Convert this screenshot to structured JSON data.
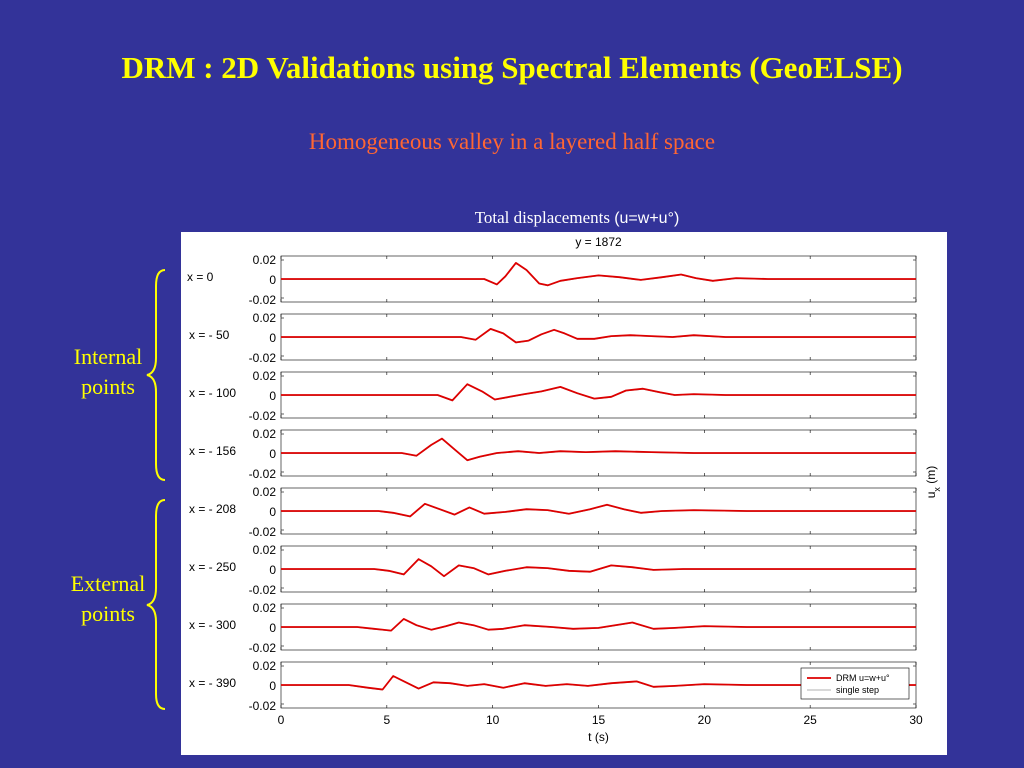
{
  "slide": {
    "title": "DRM : 2D Validations using Spectral Elements (GeoELSE)",
    "subtitle": "Homogeneous valley in a layered half space",
    "chart_heading_serif": "Total displacements ",
    "chart_heading_sans": "(u=w+u°)"
  },
  "groups": {
    "internal": "Internal points",
    "external": "External points"
  },
  "colors": {
    "background": "#333399",
    "title": "#ffff00",
    "subtitle": "#ff6633",
    "series_drm": "#dd0000",
    "series_single": "#999999"
  },
  "chart_data": {
    "type": "line",
    "title": "y = 1872",
    "xlabel": "t (s)",
    "ylabel": "u_x (m)",
    "xlim": [
      0,
      30
    ],
    "ylim": [
      -0.02,
      0.02
    ],
    "xticks": [
      0,
      5,
      10,
      15,
      20,
      25,
      30
    ],
    "yticks": [
      "0.02",
      "0",
      "-0.02"
    ],
    "legend": {
      "position": "bottom-right",
      "entries": [
        "DRM u=w+u°",
        "single step"
      ]
    },
    "series_names": [
      "DRM u=w+u°",
      "single step"
    ],
    "panels": [
      {
        "label": "x = 0",
        "t": [
          0,
          9.6,
          10.2,
          10.6,
          11.1,
          11.6,
          12.2,
          12.6,
          13.2,
          14,
          15,
          16,
          17,
          18,
          18.9,
          19.6,
          20.4,
          21.5,
          23,
          26,
          30
        ],
        "u": [
          0,
          0,
          -0.006,
          0.003,
          0.018,
          0.01,
          -0.005,
          -0.007,
          -0.002,
          0.001,
          0.004,
          0.002,
          -0.001,
          0.002,
          0.005,
          0.001,
          -0.002,
          0.001,
          0,
          0,
          0
        ]
      },
      {
        "label": "x = - 50",
        "t": [
          0,
          8.5,
          9.2,
          9.9,
          10.5,
          11.1,
          11.7,
          12.3,
          12.9,
          13.4,
          14,
          14.8,
          15.6,
          16.5,
          17.5,
          18.5,
          19.5,
          21,
          24,
          30
        ],
        "u": [
          0,
          0,
          -0.003,
          0.009,
          0.004,
          -0.006,
          -0.004,
          0.003,
          0.008,
          0.004,
          -0.002,
          -0.002,
          0.001,
          0.002,
          0.001,
          0,
          0.002,
          0,
          0,
          0
        ]
      },
      {
        "label": "x = - 100",
        "t": [
          0,
          7.4,
          8.1,
          8.8,
          9.5,
          10.1,
          10.8,
          11.5,
          12.3,
          13.2,
          14,
          14.8,
          15.6,
          16.3,
          17.1,
          17.9,
          18.6,
          19.5,
          21,
          24,
          30
        ],
        "u": [
          0,
          0,
          -0.006,
          0.012,
          0.004,
          -0.005,
          -0.002,
          0.001,
          0.004,
          0.009,
          0.002,
          -0.004,
          -0.002,
          0.005,
          0.007,
          0.003,
          0,
          0.001,
          0,
          0,
          0
        ]
      },
      {
        "label": "x = - 156",
        "t": [
          0,
          5.7,
          6.4,
          7.1,
          7.6,
          8.2,
          8.8,
          9.4,
          10.2,
          11.2,
          12.2,
          13.2,
          14.4,
          15.8,
          17.5,
          19.5,
          22,
          30
        ],
        "u": [
          0,
          0,
          -0.003,
          0.009,
          0.016,
          0.004,
          -0.008,
          -0.004,
          0,
          0.002,
          0,
          0.002,
          0.001,
          0.002,
          0.001,
          0,
          0,
          0
        ]
      },
      {
        "label": "x = - 208",
        "t": [
          0,
          4.6,
          5.3,
          6.1,
          6.8,
          7.5,
          8.2,
          8.9,
          9.6,
          10.6,
          11.6,
          12.6,
          13.6,
          14.6,
          15.4,
          16.2,
          17,
          18,
          19.5,
          22,
          30
        ],
        "u": [
          0,
          0,
          -0.002,
          -0.006,
          0.008,
          0.002,
          -0.004,
          0.004,
          -0.003,
          -0.001,
          0.002,
          0.001,
          -0.003,
          0.002,
          0.007,
          0.002,
          -0.002,
          0,
          0.001,
          0,
          0
        ]
      },
      {
        "label": "x = - 250",
        "t": [
          0,
          4.4,
          5.1,
          5.8,
          6.5,
          7.1,
          7.7,
          8.4,
          9.1,
          9.8,
          10.6,
          11.6,
          12.6,
          13.6,
          14.6,
          15.6,
          16.6,
          17.6,
          19,
          22,
          30
        ],
        "u": [
          0,
          0,
          -0.002,
          -0.006,
          0.011,
          0.003,
          -0.008,
          0.004,
          0.001,
          -0.006,
          -0.002,
          0.002,
          0.001,
          -0.002,
          -0.003,
          0.004,
          0.002,
          -0.001,
          0,
          0,
          0
        ]
      },
      {
        "label": "x = - 300",
        "t": [
          0,
          3.6,
          4.4,
          5.2,
          5.8,
          6.4,
          7.1,
          7.8,
          8.4,
          9.1,
          9.8,
          10.5,
          11.5,
          12.8,
          13.8,
          15,
          16.6,
          17.6,
          18.6,
          20,
          22,
          30
        ],
        "u": [
          0,
          0,
          -0.002,
          -0.004,
          0.009,
          0.002,
          -0.003,
          0.001,
          0.005,
          0.002,
          -0.003,
          -0.002,
          0.002,
          0,
          -0.002,
          -0.001,
          0.005,
          -0.002,
          -0.001,
          0.001,
          0,
          0
        ]
      },
      {
        "label": "x = - 390",
        "t": [
          0,
          3.2,
          4.1,
          4.8,
          5.3,
          5.9,
          6.5,
          7.2,
          8,
          8.8,
          9.6,
          10.5,
          11.5,
          12.5,
          13.5,
          14.5,
          15.6,
          16.8,
          17.6,
          18.6,
          20,
          22,
          30
        ],
        "u": [
          0,
          0,
          -0.003,
          -0.005,
          0.01,
          0.003,
          -0.004,
          0.003,
          0.002,
          -0.001,
          0.001,
          -0.003,
          0.002,
          -0.001,
          0.001,
          -0.001,
          0.002,
          0.004,
          -0.002,
          -0.001,
          0.001,
          0,
          0
        ]
      }
    ]
  }
}
